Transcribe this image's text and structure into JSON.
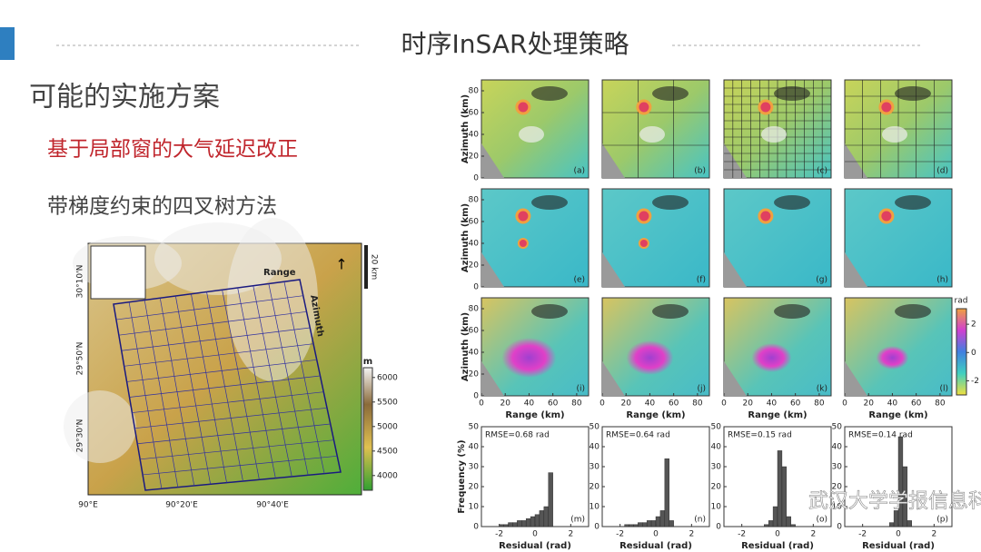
{
  "header": {
    "title": "时序InSAR处理策略"
  },
  "section_title": "可能的实施方案",
  "bullets": [
    "基于局部窗的大气延迟改正",
    "带梯度约束的四叉树方法"
  ],
  "map": {
    "lat_labels": [
      "30°10'N",
      "29°50'N",
      "29°30'N"
    ],
    "lon_labels": [
      "90°E",
      "90°20'E",
      "90°40'E"
    ],
    "range_label": "Range",
    "azimuth_label": "Azimuth",
    "scale_label": "20 km",
    "colorbar": {
      "title": "m",
      "ticks": [
        6000,
        5500,
        5000,
        4500,
        4000
      ],
      "lim": [
        3700,
        6200
      ]
    }
  },
  "panels": {
    "y_label": "Azimuth (km)",
    "x_label": "Range (km)",
    "letters": [
      "(a)",
      "(b)",
      "(c)",
      "(d)",
      "(e)",
      "(f)",
      "(g)",
      "(h)",
      "(i)",
      "(j)",
      "(k)",
      "(l)"
    ],
    "xlim": [
      0,
      90
    ],
    "ylim": [
      0,
      90
    ],
    "xticks": [
      0,
      20,
      40,
      60,
      80
    ],
    "yticks": [
      0,
      20,
      40,
      60,
      80
    ],
    "colorbar": {
      "title": "rad",
      "ticks": [
        2,
        0,
        -2
      ],
      "lim": [
        -3,
        3.1
      ]
    }
  },
  "histograms": {
    "type": "histogram",
    "y_label": "Frequency (%)",
    "x_label": "Residual (rad)",
    "xlim": [
      -3,
      3
    ],
    "ylim": [
      0,
      50
    ],
    "xticks": [
      -2,
      0,
      2
    ],
    "yticks": [
      0,
      10,
      20,
      30,
      40,
      50
    ],
    "color": "#555555",
    "bins": [
      -2,
      -1.75,
      -1.5,
      -1.25,
      -1,
      -0.75,
      -0.5,
      -0.25,
      0,
      0.25,
      0.5,
      0.75,
      1
    ],
    "panels": [
      {
        "rmse": "RMSE=0.68 rad",
        "letter": "(m)",
        "values": [
          1,
          1,
          2,
          2,
          3,
          3,
          4,
          5,
          6,
          8,
          10,
          27
        ]
      },
      {
        "rmse": "RMSE=0.64 rad",
        "letter": "(n)",
        "values": [
          0,
          1,
          1,
          1,
          2,
          2,
          3,
          3,
          5,
          8,
          34,
          3
        ]
      },
      {
        "rmse": "RMSE=0.15 rad",
        "letter": "(o)",
        "values": [
          0,
          0,
          0,
          0,
          0,
          1,
          3,
          10,
          38,
          30,
          5,
          1
        ]
      },
      {
        "rmse": "RMSE=0.14 rad",
        "letter": "(p)",
        "values": [
          0,
          0,
          0,
          0,
          0,
          0,
          2,
          8,
          45,
          30,
          3,
          0
        ]
      }
    ]
  },
  "watermark": "武汉大学学报信息科学版"
}
